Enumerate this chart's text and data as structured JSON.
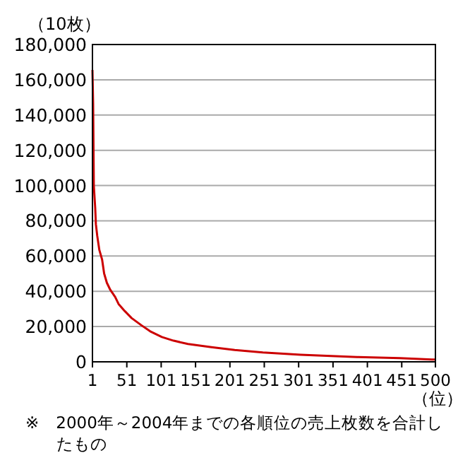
{
  "chart_data": {
    "type": "line",
    "ylabel": "（10枚）",
    "xlabel": "（位）",
    "annotations": [
      "※　2000年～2004年までの各順位の売上枚数を合計したもの"
    ],
    "x": [
      1,
      2,
      3,
      5,
      6,
      8,
      11,
      15,
      18,
      22,
      27,
      34,
      39,
      48,
      58,
      72,
      85,
      102,
      119,
      140,
      174,
      208,
      249,
      304,
      386,
      448,
      495,
      500
    ],
    "series": [
      {
        "color": "#cc0000",
        "values": [
          165600,
          146600,
          100000,
          87400,
          78100,
          71400,
          63500,
          58100,
          50100,
          44800,
          40800,
          36800,
          32800,
          28800,
          24800,
          20800,
          17300,
          14100,
          12000,
          10100,
          8300,
          6700,
          5300,
          4000,
          2700,
          2100,
          1300,
          1300
        ]
      }
    ],
    "xlim": [
      1,
      500
    ],
    "xticks": [
      1,
      51,
      101,
      151,
      201,
      251,
      301,
      351,
      401,
      451,
      500
    ],
    "ylim": [
      0,
      180000
    ],
    "yticks": [
      0,
      {
        "value": 20000,
        "label": "20,000"
      },
      {
        "value": 40000,
        "label": "40,000"
      },
      {
        "value": 60000,
        "label": "60,000"
      },
      {
        "value": 80000,
        "label": "80,000"
      },
      {
        "value": 100000,
        "label": "100,000"
      },
      {
        "value": 120000,
        "label": "120,000"
      },
      {
        "value": 140000,
        "label": "140,000"
      },
      {
        "value": 160000,
        "label": "160,000"
      },
      {
        "value": 180000,
        "label": "180,000"
      }
    ],
    "grid": "y"
  }
}
